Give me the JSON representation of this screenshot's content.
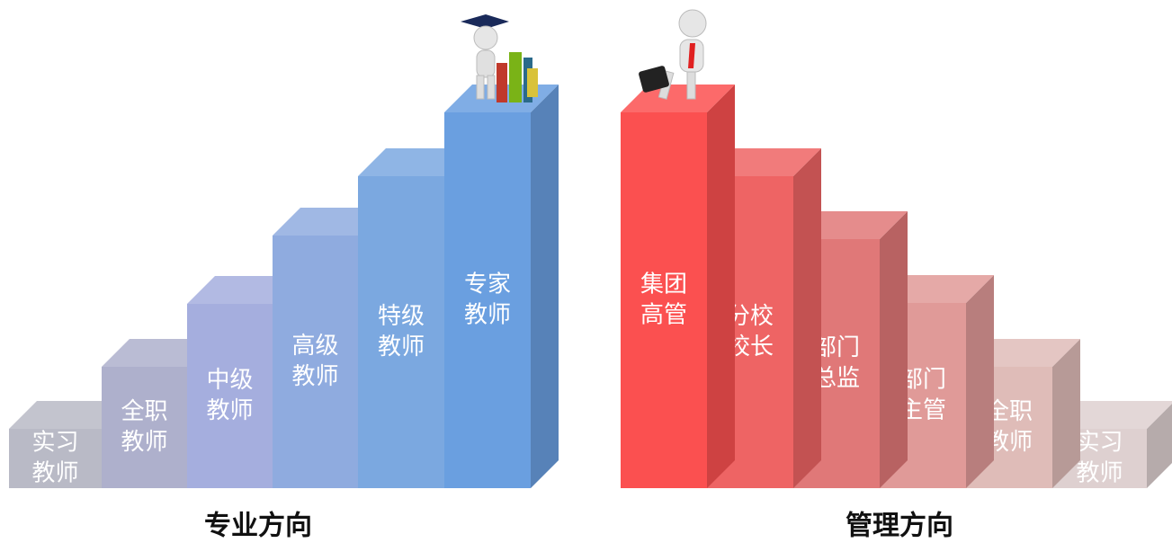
{
  "left": {
    "title": "专业方向",
    "steps": [
      {
        "line1": "实习",
        "line2": "教师"
      },
      {
        "line1": "全职",
        "line2": "教师"
      },
      {
        "line1": "中级",
        "line2": "教师"
      },
      {
        "line1": "高级",
        "line2": "教师"
      },
      {
        "line1": "特级",
        "line2": "教师"
      },
      {
        "line1": "专家",
        "line2": "教师"
      }
    ]
  },
  "right": {
    "title": "管理方向",
    "steps": [
      {
        "line1": "集团",
        "line2": "高管"
      },
      {
        "line1": "分校",
        "line2": "校长"
      },
      {
        "line1": "部门",
        "line2": "总监"
      },
      {
        "line1": "部门",
        "line2": "主管"
      },
      {
        "line1": "全职",
        "line2": "教师"
      },
      {
        "line1": "实习",
        "line2": "教师"
      }
    ]
  }
}
